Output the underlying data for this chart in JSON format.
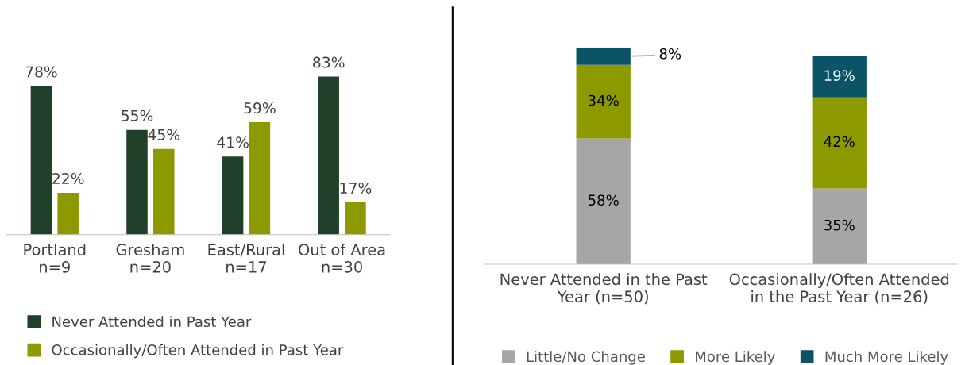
{
  "chart_data": [
    {
      "type": "bar",
      "categories": [
        "Portland\nn=9",
        "Gresham\nn=20",
        "East/Rural\nn=17",
        "Out of Area\nn=30"
      ],
      "series": [
        {
          "name": "Never Attended in Past Year",
          "color": "#1f4029",
          "values": [
            78,
            55,
            41,
            83
          ],
          "value_labels": [
            "78%",
            "55%",
            "41%",
            "83%"
          ]
        },
        {
          "name": "Occasionally/Often Attended in Past Year",
          "color": "#8c9a00",
          "values": [
            22,
            45,
            59,
            17
          ],
          "value_labels": [
            "22%",
            "45%",
            "59%",
            "17%"
          ]
        }
      ],
      "legend": "bottom",
      "tick_labels": "x"
    },
    {
      "type": "bar",
      "stacked": true,
      "categories": [
        "Never Attended in the Past\nYear (n=50)",
        "Occasionally/Often Attended\nin the Past Year (n=26)"
      ],
      "series": [
        {
          "name": "Little/No Change",
          "color": "#a6a6a6",
          "values": [
            58,
            35
          ],
          "value_labels": [
            "58%",
            "35%"
          ]
        },
        {
          "name": "More Likely",
          "color": "#8c9a00",
          "values": [
            34,
            42
          ],
          "value_labels": [
            "34%",
            "42%"
          ]
        },
        {
          "name": "Much More Likely",
          "color": "#0b5366",
          "values": [
            8,
            19
          ],
          "value_labels": [
            "8%",
            "19%"
          ]
        }
      ],
      "legend": "bottom",
      "tick_labels": "x"
    }
  ]
}
